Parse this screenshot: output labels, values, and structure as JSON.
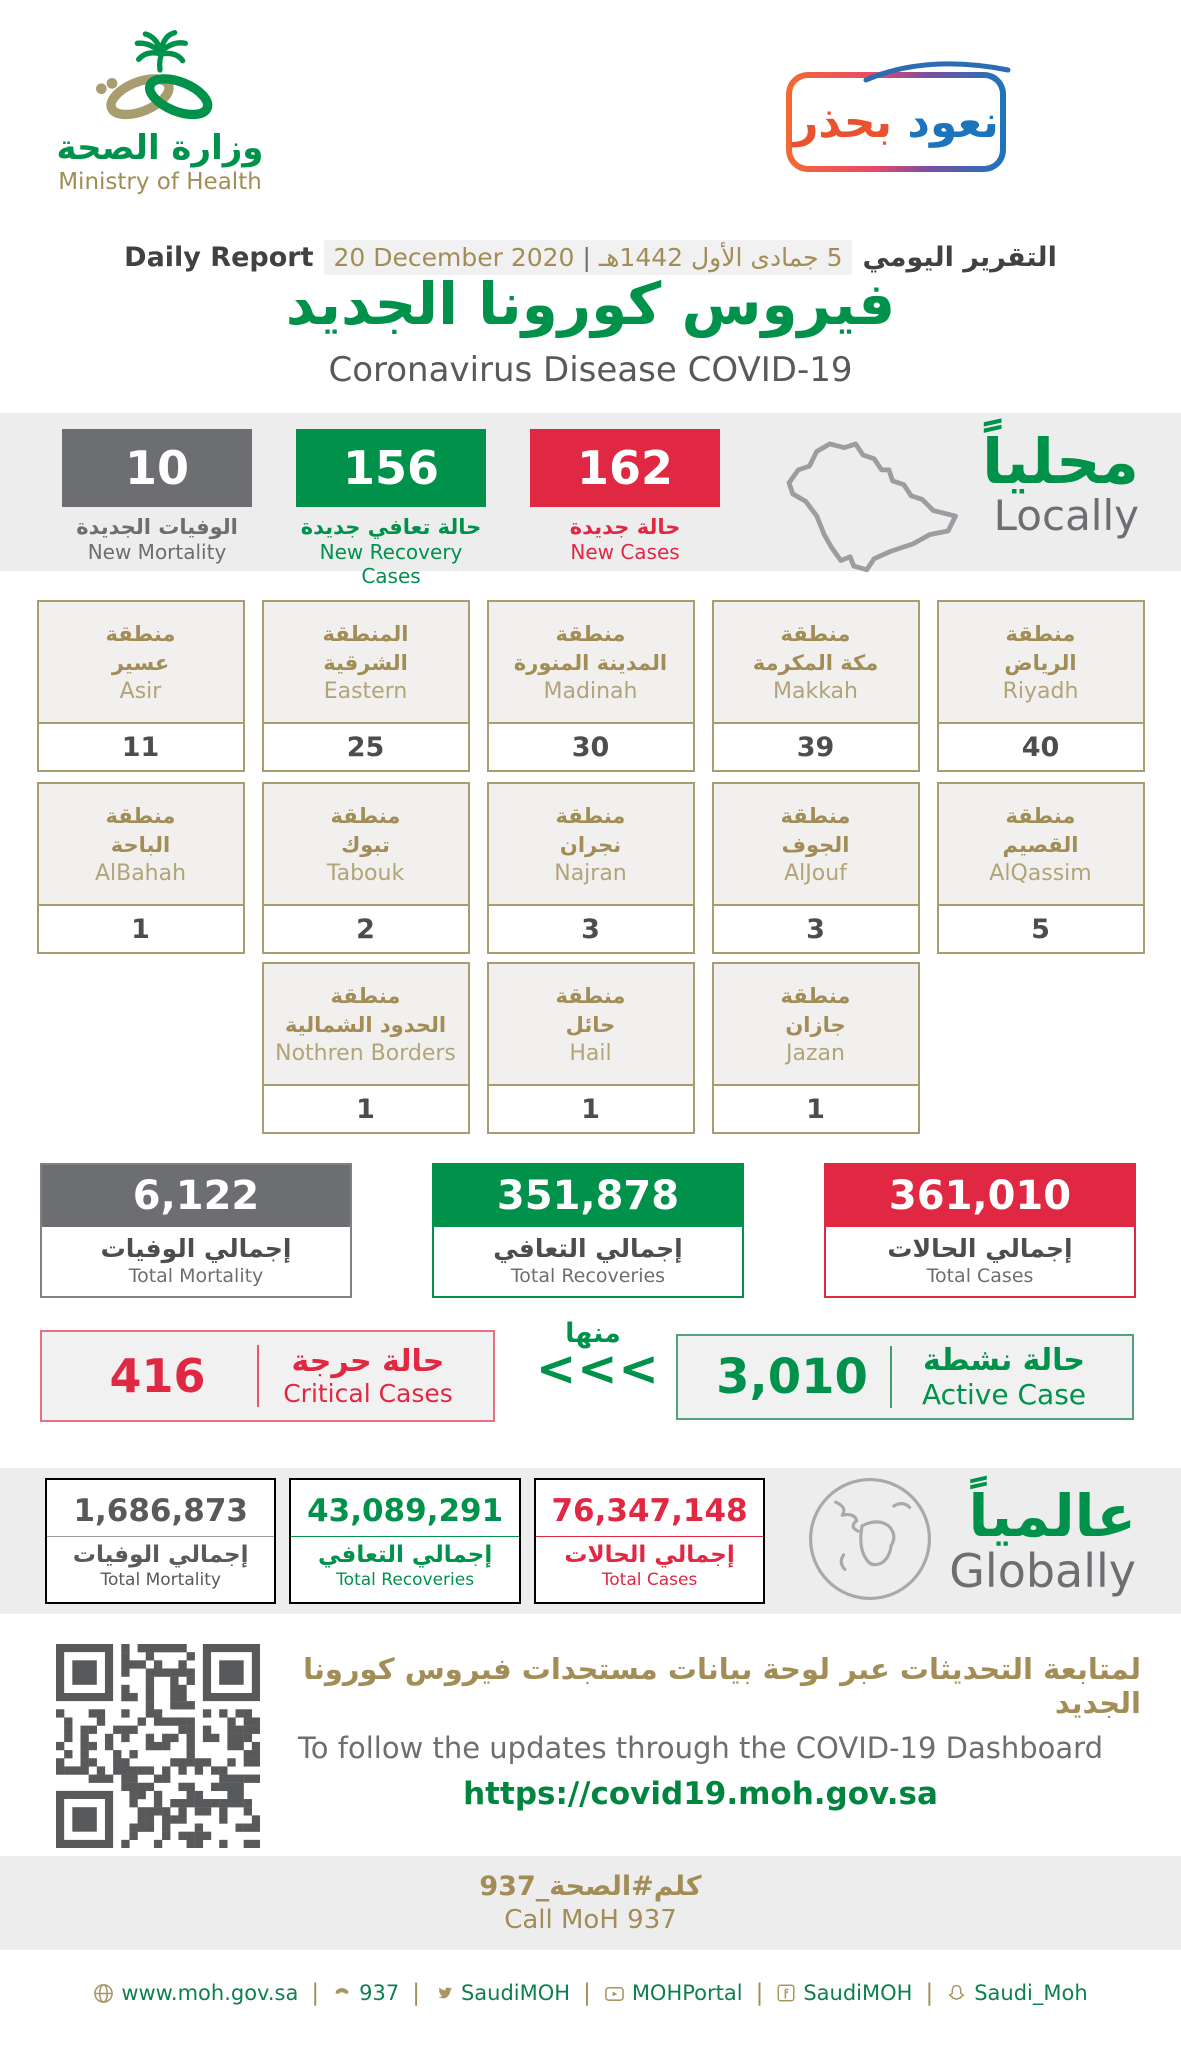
{
  "colors": {
    "green": "#00924a",
    "red": "#e02843",
    "gray": "#6d6e71",
    "gold": "#a18d55",
    "goldborder": "#a89d6e",
    "band": "#ededee",
    "footergreen": "#0e8050"
  },
  "header": {
    "logo_ar": "وزارة الصحة",
    "logo_en": "Ministry of Health",
    "badge": {
      "word_right": "نعود",
      "word_left": "بحذر"
    },
    "report_label_en": "Daily Report",
    "date_en": "20 December 2020",
    "date_separator": "|",
    "date_ar": "5 جمادى الأول 1442هـ",
    "report_label_ar": "التقرير اليومي",
    "title_ar": "فيروس كورونا الجديد",
    "title_en": "Coronavirus Disease COVID-19"
  },
  "local": {
    "heading_ar": "محلياً",
    "heading_en": "Locally",
    "stats": [
      {
        "value": "10",
        "label_ar": "الوفيات الجديدة",
        "label_en": "New Mortality"
      },
      {
        "value": "156",
        "label_ar": "حالة تعافي جديدة",
        "label_en": "New Recovery Cases"
      },
      {
        "value": "162",
        "label_ar": "حالة جديدة",
        "label_en": "New Cases"
      }
    ]
  },
  "regions": {
    "rows": [
      [
        {
          "ar1": "منطقة",
          "ar2": "عسير",
          "en": "Asir",
          "value": "11"
        },
        {
          "ar1": "المنطقة",
          "ar2": "الشرقية",
          "en": "Eastern",
          "value": "25"
        },
        {
          "ar1": "منطقة",
          "ar2": "المدينة المنورة",
          "en": "Madinah",
          "value": "30"
        },
        {
          "ar1": "منطقة",
          "ar2": "مكة المكرمة",
          "en": "Makkah",
          "value": "39"
        },
        {
          "ar1": "منطقة",
          "ar2": "الرياض",
          "en": "Riyadh",
          "value": "40"
        }
      ],
      [
        {
          "ar1": "منطقة",
          "ar2": "الباحة",
          "en": "AlBahah",
          "value": "1"
        },
        {
          "ar1": "منطقة",
          "ar2": "تبوك",
          "en": "Tabouk",
          "value": "2"
        },
        {
          "ar1": "منطقة",
          "ar2": "نجران",
          "en": "Najran",
          "value": "3"
        },
        {
          "ar1": "منطقة",
          "ar2": "الجوف",
          "en": "AlJouf",
          "value": "3"
        },
        {
          "ar1": "منطقة",
          "ar2": "القصيم",
          "en": "AlQassim",
          "value": "5"
        }
      ],
      [
        {
          "ar1": "منطقة",
          "ar2": "الحدود الشمالية",
          "en": "Nothren Borders",
          "value": "1"
        },
        {
          "ar1": "منطقة",
          "ar2": "حائل",
          "en": "Hail",
          "value": "1"
        },
        {
          "ar1": "منطقة",
          "ar2": "جازان",
          "en": "Jazan",
          "value": "1"
        }
      ]
    ]
  },
  "totals": [
    {
      "value": "6,122",
      "label_ar": "إجمالي الوفيات",
      "label_en": "Total Mortality"
    },
    {
      "value": "351,878",
      "label_ar": "إجمالي التعافي",
      "label_en": "Total Recoveries"
    },
    {
      "value": "361,010",
      "label_ar": "إجمالي الحالات",
      "label_en": "Total Cases"
    }
  ],
  "status": {
    "critical": {
      "value": "416",
      "label_ar": "حالة حرجة",
      "label_en": "Critical Cases"
    },
    "of_which_ar": "منها",
    "chevrons": "<<<",
    "active": {
      "value": "3,010",
      "label_ar": "حالة نشطة",
      "label_en": "Active Case"
    }
  },
  "global": {
    "heading_ar": "عالمياً",
    "heading_en": "Globally",
    "stats": [
      {
        "value": "1,686,873",
        "label_ar": "إجمالي الوفيات",
        "label_en": "Total Mortality"
      },
      {
        "value": "43,089,291",
        "label_ar": "إجمالي التعافي",
        "label_en": "Total Recoveries"
      },
      {
        "value": "76,347,148",
        "label_ar": "إجمالي الحالات",
        "label_en": "Total Cases"
      }
    ]
  },
  "dashboard": {
    "line_ar": "لمتابعة التحديثات عبر لوحة بيانات مستجدات فيروس كورونا الجديد",
    "line_en": "To follow the updates through the COVID-19 Dashboard",
    "url": "https://covid19.moh.gov.sa"
  },
  "call": {
    "ar": "كلم#الصحة_937",
    "en": "Call MoH 937"
  },
  "footer": {
    "separator": "|",
    "items": [
      {
        "icon": "globe-icon",
        "text": "www.moh.gov.sa"
      },
      {
        "icon": "phone-icon",
        "text": "937"
      },
      {
        "icon": "twitter-icon",
        "text": "SaudiMOH"
      },
      {
        "icon": "youtube-icon",
        "text": "MOHPortal"
      },
      {
        "icon": "facebook-icon",
        "text": "SaudiMOH"
      },
      {
        "icon": "snapchat-icon",
        "text": "Saudi_Moh"
      }
    ]
  }
}
